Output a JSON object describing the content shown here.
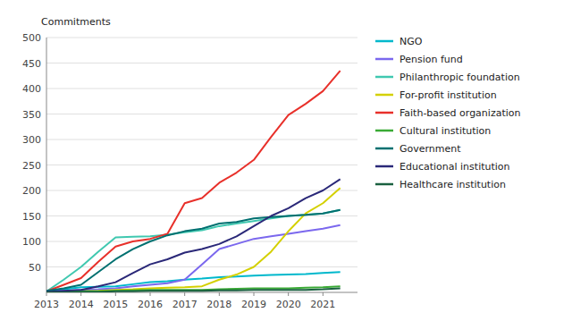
{
  "chart_data": {
    "type": "line",
    "ylabel": "Commitments",
    "x": [
      2013,
      2013.5,
      2014,
      2014.5,
      2015,
      2015.5,
      2016,
      2016.5,
      2017,
      2017.5,
      2018,
      2018.5,
      2019,
      2019.5,
      2020,
      2020.5,
      2021,
      2021.5
    ],
    "series": [
      {
        "name": "NGO",
        "color": "#00b8cc",
        "values": [
          2,
          6,
          10,
          11,
          12,
          16,
          20,
          22,
          25,
          27,
          30,
          31,
          33,
          34,
          35,
          36,
          38,
          40
        ]
      },
      {
        "name": "Pension fund",
        "color": "#7b68ee",
        "values": [
          1,
          3,
          5,
          6,
          8,
          12,
          15,
          18,
          25,
          55,
          85,
          95,
          105,
          110,
          115,
          120,
          125,
          132
        ]
      },
      {
        "name": "Philanthropic foundation",
        "color": "#40c8b0",
        "values": [
          2,
          25,
          50,
          80,
          108,
          109,
          110,
          113,
          118,
          122,
          130,
          135,
          140,
          145,
          150,
          152,
          155,
          162
        ]
      },
      {
        "name": "For-profit institution",
        "color": "#d4d000",
        "values": [
          0,
          1,
          2,
          3,
          5,
          6,
          8,
          9,
          10,
          12,
          25,
          35,
          50,
          80,
          120,
          155,
          175,
          205
        ]
      },
      {
        "name": "Faith-based organization",
        "color": "#e8302a",
        "values": [
          2,
          15,
          28,
          60,
          90,
          100,
          105,
          115,
          175,
          185,
          215,
          235,
          260,
          305,
          348,
          370,
          395,
          435
        ]
      },
      {
        "name": "Cultural institution",
        "color": "#3aaa35",
        "values": [
          0,
          1,
          2,
          2,
          3,
          4,
          5,
          5,
          5,
          5,
          6,
          7,
          8,
          8,
          8,
          9,
          10,
          12
        ]
      },
      {
        "name": "Government",
        "color": "#007070",
        "values": [
          3,
          8,
          15,
          40,
          65,
          85,
          100,
          112,
          120,
          125,
          135,
          138,
          145,
          148,
          150,
          152,
          155,
          162
        ]
      },
      {
        "name": "Educational institution",
        "color": "#2a2878",
        "values": [
          1,
          3,
          5,
          12,
          20,
          38,
          55,
          65,
          78,
          85,
          95,
          110,
          130,
          150,
          165,
          185,
          200,
          222
        ]
      },
      {
        "name": "Healthcare institution",
        "color": "#1a6040",
        "values": [
          0,
          0,
          1,
          1,
          2,
          2,
          3,
          3,
          3,
          3,
          4,
          4,
          5,
          5,
          5,
          5,
          6,
          8
        ]
      }
    ],
    "xlim": [
      2013,
      2022.0
    ],
    "ylim": [
      0,
      500
    ],
    "yticks": [
      50,
      100,
      150,
      200,
      250,
      300,
      350,
      400,
      450,
      500
    ],
    "xticks": [
      2013,
      2014,
      2015,
      2016,
      2017,
      2018,
      2019,
      2020,
      2021
    ],
    "grid": true,
    "legend": "right"
  }
}
